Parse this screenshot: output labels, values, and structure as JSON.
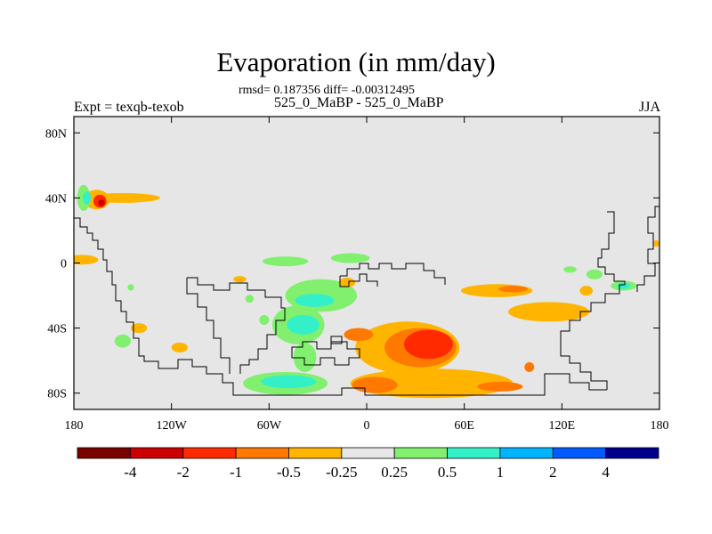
{
  "title": "Evaporation (in mm/day)",
  "stats_line": "rmsd= 0.187356 diff= -0.00312495",
  "subtitle": "525_0_MaBP - 525_0_MaBP",
  "left_label": "Expt = texqb-texob",
  "right_label": "JJA",
  "chart_data": {
    "type": "heatmap",
    "projection": "cylindrical-equidistant",
    "x_range": [
      -180,
      180
    ],
    "y_range": [
      -90,
      90
    ],
    "x_ticks": [
      {
        "value": -180,
        "label": "180"
      },
      {
        "value": -120,
        "label": "120W"
      },
      {
        "value": -60,
        "label": "60W"
      },
      {
        "value": 0,
        "label": "0"
      },
      {
        "value": 60,
        "label": "60E"
      },
      {
        "value": 120,
        "label": "120E"
      },
      {
        "value": 180,
        "label": "180"
      }
    ],
    "y_ticks": [
      {
        "value": 80,
        "label": "80N"
      },
      {
        "value": 40,
        "label": "40N"
      },
      {
        "value": 0,
        "label": "0"
      },
      {
        "value": -40,
        "label": "40S"
      },
      {
        "value": -80,
        "label": "80S"
      }
    ],
    "background_color": "#e6e6e6",
    "colorbar": {
      "colors": [
        "#7a0000",
        "#cc0000",
        "#ff2a00",
        "#ff7800",
        "#ffb400",
        "#e6e6e6",
        "#80f06e",
        "#33f0c8",
        "#00b4ff",
        "#005aff",
        "#00008c"
      ],
      "labels": [
        "-4",
        "-2",
        "-1",
        "-0.5",
        "-0.25",
        "0.25",
        "0.5",
        "1",
        "2",
        "4"
      ]
    },
    "anomaly_regions": [
      {
        "lon": -175,
        "lat": 2,
        "rx": 10,
        "ry": 3,
        "color": "#ffb400"
      },
      {
        "lon": -150,
        "lat": 40,
        "rx": 23,
        "ry": 3,
        "color": "#ffb400"
      },
      {
        "lon": -166,
        "lat": 39,
        "rx": 8,
        "ry": 6,
        "color": "#ffb400"
      },
      {
        "lon": -174,
        "lat": 40,
        "rx": 4,
        "ry": 8,
        "color": "#80f06e"
      },
      {
        "lon": -172,
        "lat": 40,
        "rx": 2.5,
        "ry": 4,
        "color": "#33f0c8"
      },
      {
        "lon": -164,
        "lat": 38,
        "rx": 4,
        "ry": 4,
        "color": "#ff2a00"
      },
      {
        "lon": -163,
        "lat": 37,
        "rx": 2,
        "ry": 2,
        "color": "#cc0000"
      },
      {
        "lon": -140,
        "lat": -40,
        "rx": 5,
        "ry": 3,
        "color": "#ffb400"
      },
      {
        "lon": -115,
        "lat": -52,
        "rx": 5,
        "ry": 3,
        "color": "#ffb400"
      },
      {
        "lon": -145,
        "lat": -15,
        "rx": 2,
        "ry": 2,
        "color": "#80f06e"
      },
      {
        "lon": -50,
        "lat": 1,
        "rx": 14,
        "ry": 3,
        "color": "#80f06e"
      },
      {
        "lon": -10,
        "lat": 3,
        "rx": 12,
        "ry": 3,
        "color": "#80f06e"
      },
      {
        "lon": -28,
        "lat": -20,
        "rx": 22,
        "ry": 10,
        "color": "#80f06e"
      },
      {
        "lon": -32,
        "lat": -23,
        "rx": 12,
        "ry": 4,
        "color": "#33f0c8"
      },
      {
        "lon": -72,
        "lat": -22,
        "rx": 2.5,
        "ry": 2.5,
        "color": "#80f06e"
      },
      {
        "lon": -63,
        "lat": -35,
        "rx": 3,
        "ry": 3,
        "color": "#80f06e"
      },
      {
        "lon": -42,
        "lat": -38,
        "rx": 16,
        "ry": 12,
        "color": "#80f06e"
      },
      {
        "lon": -39,
        "lat": -38,
        "rx": 10,
        "ry": 6,
        "color": "#33f0c8"
      },
      {
        "lon": -50,
        "lat": -74,
        "rx": 26,
        "ry": 7,
        "color": "#80f06e"
      },
      {
        "lon": -48,
        "lat": -73,
        "rx": 17,
        "ry": 4,
        "color": "#33f0c8"
      },
      {
        "lon": -38,
        "lat": -58,
        "rx": 7,
        "ry": 9,
        "color": "#80f06e"
      },
      {
        "lon": -150,
        "lat": -48,
        "rx": 5,
        "ry": 4,
        "color": "#80f06e"
      },
      {
        "lon": -12,
        "lat": -12,
        "rx": 5,
        "ry": 3,
        "color": "#ffb400"
      },
      {
        "lon": -78,
        "lat": -10,
        "rx": 4,
        "ry": 2,
        "color": "#ffb400"
      },
      {
        "lon": 5,
        "lat": -48,
        "rx": 5,
        "ry": 3,
        "color": "#ffb400"
      },
      {
        "lon": 25,
        "lat": -52,
        "rx": 32,
        "ry": 16,
        "color": "#ffb400"
      },
      {
        "lon": 33,
        "lat": -52,
        "rx": 22,
        "ry": 12,
        "color": "#ff7800"
      },
      {
        "lon": 38,
        "lat": -50,
        "rx": 15,
        "ry": 9,
        "color": "#ff2a00"
      },
      {
        "lon": -5,
        "lat": -44,
        "rx": 9,
        "ry": 4,
        "color": "#ff7800"
      },
      {
        "lon": 40,
        "lat": -74,
        "rx": 50,
        "ry": 9,
        "color": "#ffb400"
      },
      {
        "lon": 5,
        "lat": -75,
        "rx": 14,
        "ry": 5,
        "color": "#ff7800"
      },
      {
        "lon": 82,
        "lat": -76,
        "rx": 14,
        "ry": 3,
        "color": "#ff7800"
      },
      {
        "lon": 100,
        "lat": -64,
        "rx": 3,
        "ry": 3,
        "color": "#ff7800"
      },
      {
        "lon": 80,
        "lat": -17,
        "rx": 22,
        "ry": 4,
        "color": "#ffb400"
      },
      {
        "lon": 90,
        "lat": -16,
        "rx": 9,
        "ry": 2,
        "color": "#ff7800"
      },
      {
        "lon": 112,
        "lat": -30,
        "rx": 25,
        "ry": 6,
        "color": "#ffb400"
      },
      {
        "lon": 140,
        "lat": -7,
        "rx": 5,
        "ry": 3,
        "color": "#80f06e"
      },
      {
        "lon": 125,
        "lat": -4,
        "rx": 4,
        "ry": 2,
        "color": "#80f06e"
      },
      {
        "lon": 158,
        "lat": -14,
        "rx": 8,
        "ry": 3,
        "color": "#80f06e"
      },
      {
        "lon": 158,
        "lat": -14,
        "rx": 4,
        "ry": 2,
        "color": "#33f0c8"
      },
      {
        "lon": 135,
        "lat": -17,
        "rx": 4,
        "ry": 3,
        "color": "#ffb400"
      },
      {
        "lon": 178,
        "lat": 12,
        "rx": 2,
        "ry": 2,
        "color": "#ffb400"
      }
    ]
  }
}
